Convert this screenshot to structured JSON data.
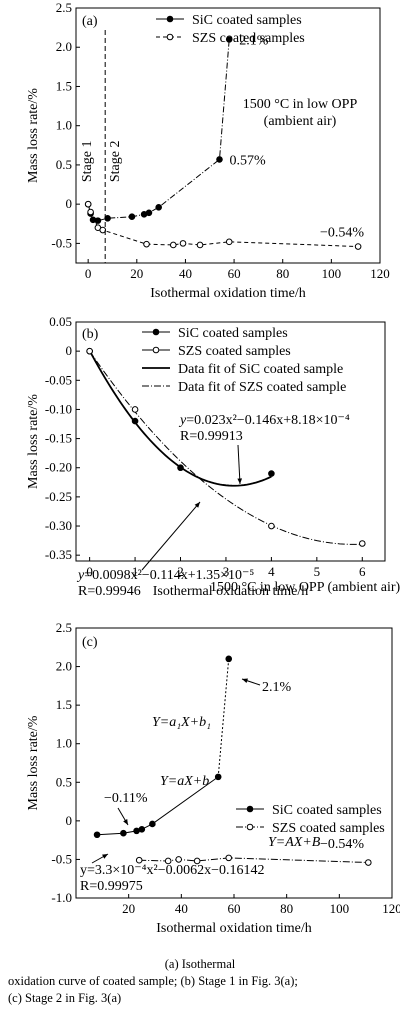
{
  "caption": {
    "line1": "(a) Isothermal",
    "line2": "oxidation curve of coated sample; (b) Stage 1 in Fig. 3(a);",
    "line3": "(c) Stage 2 in Fig. 3(a)"
  },
  "chart_data": [
    {
      "type": "line",
      "panel_label": "(a)",
      "xlabel": "Isothermal oxidation time/h",
      "ylabel": "Mass loss rate/%",
      "xlim": [
        -5,
        120
      ],
      "ylim": [
        -0.75,
        2.5
      ],
      "xticks": [
        0,
        20,
        40,
        60,
        80,
        100,
        120
      ],
      "yticks": [
        -0.5,
        0,
        0.5,
        1.0,
        1.5,
        2.0,
        2.5
      ],
      "ytick_labels": [
        "-0.5",
        "0",
        "0.5",
        "1.0",
        "1.5",
        "2.0",
        "2.5"
      ],
      "series": [
        {
          "name": "SiC coated samples",
          "marker": "filled",
          "line": "dash-dot",
          "x": [
            0,
            1,
            2,
            4,
            8,
            18,
            23,
            25,
            29,
            54,
            58
          ],
          "y": [
            0,
            -0.12,
            -0.2,
            -0.21,
            -0.18,
            -0.16,
            -0.13,
            -0.11,
            -0.04,
            0.57,
            2.1
          ]
        },
        {
          "name": "SZS coated samples",
          "marker": "open",
          "line": "dashed",
          "x": [
            0,
            1,
            4,
            6,
            24,
            35,
            39,
            46,
            58,
            111
          ],
          "y": [
            0,
            -0.1,
            -0.3,
            -0.33,
            -0.51,
            -0.52,
            -0.5,
            -0.52,
            -0.48,
            -0.54
          ]
        }
      ],
      "annotations": {
        "a_2_1": "2.1%",
        "a_0_57": "0.57%",
        "a_neg_0_54": "−0.54%",
        "condition_line1": "1500 °C in low OPP",
        "condition_line2": "(ambient air)",
        "stage1": "Stage 1",
        "stage2": "Stage 2"
      },
      "stage_divider_x": 7
    },
    {
      "type": "line",
      "panel_label": "(b)",
      "xlabel": "Isothermal oxidation time/h",
      "ylabel": "Mass loss rate/%",
      "xlim": [
        -0.3,
        6.5
      ],
      "ylim": [
        -0.36,
        0.05
      ],
      "xticks": [
        0,
        1,
        2,
        3,
        4,
        5,
        6
      ],
      "yticks": [
        0.05,
        0,
        -0.05,
        -0.1,
        -0.15,
        -0.2,
        -0.25,
        -0.3,
        -0.35
      ],
      "ytick_labels": [
        "0.05",
        "0",
        "-0.05",
        "-0.10",
        "-0.15",
        "-0.20",
        "-0.25",
        "-0.30",
        "-0.35"
      ],
      "series": [
        {
          "name": "SiC coated samples",
          "marker": "filled",
          "x": [
            0,
            1,
            2,
            4
          ],
          "y": [
            0,
            -0.12,
            -0.2,
            -0.21
          ]
        },
        {
          "name": "SZS coated samples",
          "marker": "open",
          "x": [
            0,
            1,
            4,
            6
          ],
          "y": [
            0,
            -0.1,
            -0.3,
            -0.33
          ]
        },
        {
          "name": "Data fit of SiC coated sample",
          "line": "solid",
          "fit_range": [
            0,
            4
          ],
          "coef": [
            0.023,
            -0.146,
            0.000818
          ]
        },
        {
          "name": "Data fit of SZS coated sample",
          "line": "dash-dot",
          "fit_range": [
            0,
            6
          ],
          "coef": [
            0.0098,
            -0.114,
            1.35e-05
          ]
        }
      ],
      "annotations": {
        "sic_eq_lead": "y",
        "sic_eq": "=0.023x²−0.146x+8.18×10⁻⁴",
        "sic_r": "R=0.99913",
        "szs_eq_lead": "y",
        "szs_eq": "=0.0098x²−0.114x+1.35×10⁻⁵",
        "szs_r": "R=0.99946",
        "condition": "1500 °C in low OPP (ambient air)"
      }
    },
    {
      "type": "line",
      "panel_label": "(c)",
      "xlabel": "Isothermal oxidation time/h",
      "ylabel": "Mass loss rate/%",
      "xlim": [
        0,
        120
      ],
      "ylim": [
        -1.0,
        2.5
      ],
      "xticks": [
        20,
        40,
        60,
        80,
        100,
        120
      ],
      "yticks": [
        2.5,
        2.0,
        1.5,
        1.0,
        0.5,
        0,
        -0.5,
        -1.0
      ],
      "ytick_labels": [
        "2.5",
        "2.0",
        "1.5",
        "1.0",
        "0.5",
        "0",
        "-0.5",
        "-1.0"
      ],
      "series": [
        {
          "name": "SiC coated samples",
          "marker": "filled",
          "line": "solid",
          "x": [
            8,
            18,
            23,
            25,
            29,
            54,
            58
          ],
          "y": [
            -0.18,
            -0.16,
            -0.13,
            -0.11,
            -0.04,
            0.57,
            2.1
          ]
        },
        {
          "name": "SZS coated samples",
          "marker": "open",
          "line": "dash-dot",
          "x": [
            24,
            35,
            39,
            46,
            58,
            111
          ],
          "y": [
            -0.51,
            -0.52,
            -0.5,
            -0.52,
            -0.48,
            -0.54
          ]
        }
      ],
      "annotations": {
        "c_2_1": "2.1%",
        "c_neg_0_11": "−0.11%",
        "c_neg_0_54": "−0.54%",
        "eq_a1": "Y=a₁X+b₁",
        "eq_a": "Y=aX+b",
        "eq_A": "Y=AX+B",
        "eq_quad": "y=3.3×10⁻⁴x²−0.0062x−0.16142",
        "eq_r": "R=0.99975"
      }
    }
  ]
}
